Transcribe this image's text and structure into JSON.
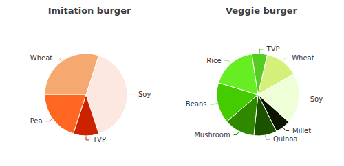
{
  "chart_data": [
    {
      "type": "pie",
      "title": "Imitation burger",
      "categories": [
        "Soy",
        "TVP",
        "Pea",
        "Wheat"
      ],
      "values": [
        40,
        10,
        20,
        30
      ],
      "colors": [
        "#fce8e0",
        "#cc2200",
        "#ff6622",
        "#f5a870"
      ]
    },
    {
      "type": "pie",
      "title": "Veggie burger",
      "categories": [
        "Wheat",
        "Soy",
        "Millet",
        "Quinoa",
        "Mushroom",
        "Beans",
        "Rice",
        "TVP"
      ],
      "values": [
        13,
        20,
        6,
        9,
        12,
        16,
        18,
        6
      ],
      "colors": [
        "#d4f07a",
        "#eeffd8",
        "#0d1500",
        "#1a5200",
        "#2e8800",
        "#44cc00",
        "#66ee22",
        "#55cc22"
      ]
    }
  ]
}
